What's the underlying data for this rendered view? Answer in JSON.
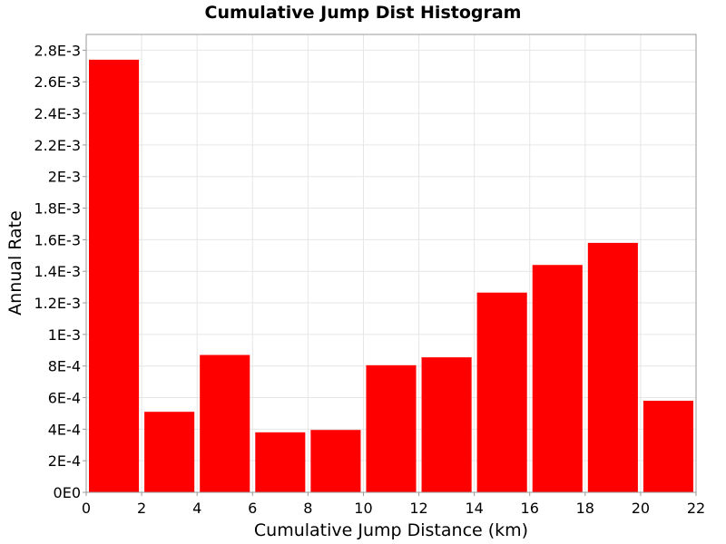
{
  "chart_data": {
    "type": "bar",
    "title": "Cumulative Jump Dist Histogram",
    "xlabel": "Cumulative Jump Distance (km)",
    "ylabel": "Annual Rate",
    "xlim": [
      0,
      22
    ],
    "ylim": [
      0,
      0.0029
    ],
    "x_ticks": [
      "0",
      "2",
      "4",
      "6",
      "8",
      "10",
      "12",
      "14",
      "16",
      "18",
      "20",
      "22"
    ],
    "x_tick_values": [
      0,
      2,
      4,
      6,
      8,
      10,
      12,
      14,
      16,
      18,
      20,
      22
    ],
    "y_ticks": [
      "0E0",
      "2E-4",
      "4E-4",
      "6E-4",
      "8E-4",
      "1E-3",
      "1.2E-3",
      "1.4E-3",
      "1.6E-3",
      "1.8E-3",
      "2E-3",
      "2.2E-3",
      "2.4E-3",
      "2.6E-3",
      "2.8E-3"
    ],
    "y_tick_values": [
      0,
      0.0002,
      0.0004,
      0.0006,
      0.0008,
      0.001,
      0.0012,
      0.0014,
      0.0016,
      0.0018,
      0.002,
      0.0022,
      0.0024,
      0.0026,
      0.0028
    ],
    "bin_width": 2,
    "bins": [
      {
        "x": 1,
        "value": 0.00274
      },
      {
        "x": 3,
        "value": 0.00051
      },
      {
        "x": 5,
        "value": 0.00087
      },
      {
        "x": 7,
        "value": 0.00038
      },
      {
        "x": 9,
        "value": 0.000395
      },
      {
        "x": 11,
        "value": 0.000805
      },
      {
        "x": 13,
        "value": 0.000855
      },
      {
        "x": 15,
        "value": 0.001265
      },
      {
        "x": 17,
        "value": 0.00144
      },
      {
        "x": 19,
        "value": 0.00158
      },
      {
        "x": 21,
        "value": 0.00058
      }
    ],
    "bar_color": "#ff0000",
    "grid": true,
    "legend": "none"
  }
}
